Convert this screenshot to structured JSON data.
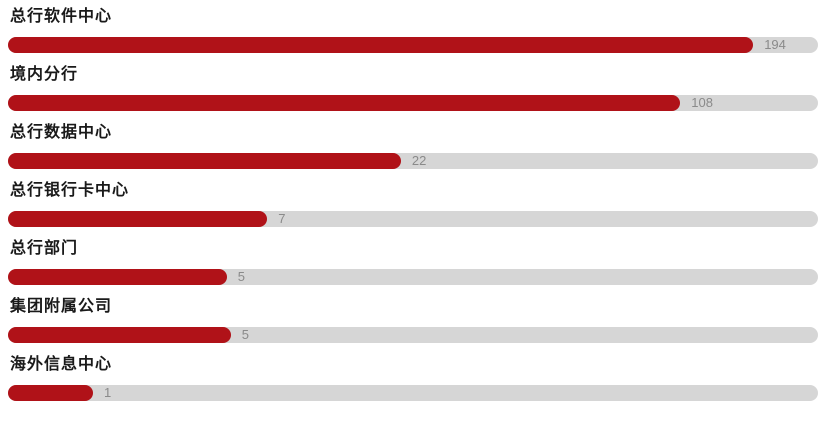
{
  "chart_data": {
    "type": "bar",
    "orientation": "horizontal",
    "title": "",
    "xlabel": "",
    "ylabel": "",
    "grid": false,
    "legend": false,
    "bar_color": "#b01218",
    "track_color": "#d6d6d6",
    "value_label_color": "#8a8a8a",
    "category_label_color": "#1a1a1a",
    "categories": [
      "总行软件中心",
      "境内分行",
      "总行数据中心",
      "总行银行卡中心",
      "总行部门",
      "集团附属公司",
      "海外信息中心"
    ],
    "values": [
      194,
      108,
      22,
      7,
      5,
      5,
      1
    ],
    "items": [
      {
        "label": "总行软件中心",
        "value": "194",
        "width_pct": 92
      },
      {
        "label": "境内分行",
        "value": "108",
        "width_pct": 83
      },
      {
        "label": "总行数据中心",
        "value": "22",
        "width_pct": 48.5
      },
      {
        "label": "总行银行卡中心",
        "value": "7",
        "width_pct": 32
      },
      {
        "label": "总行部门",
        "value": "5",
        "width_pct": 27
      },
      {
        "label": "集团附属公司",
        "value": "5",
        "width_pct": 27.5
      },
      {
        "label": "海外信息中心",
        "value": "1",
        "width_pct": 10.5
      }
    ]
  }
}
